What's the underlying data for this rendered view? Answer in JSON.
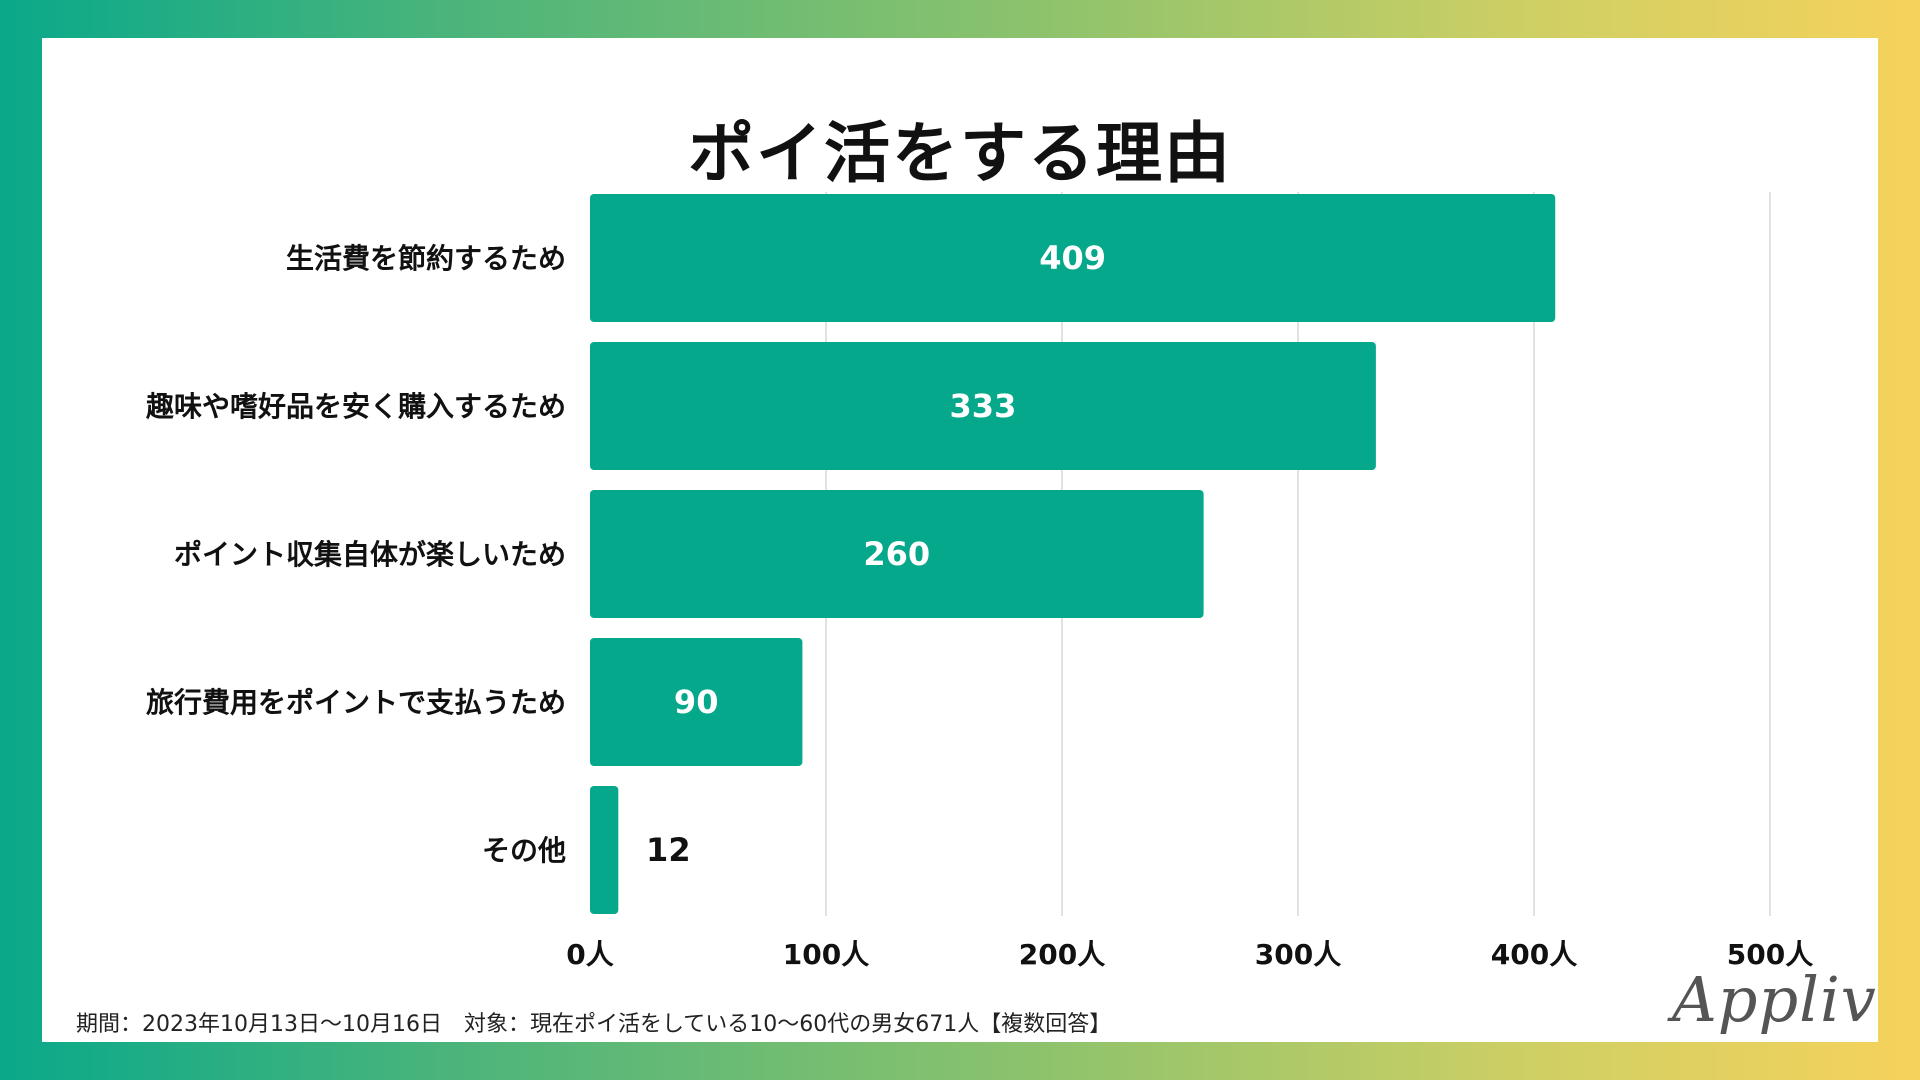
{
  "title": "ポイ活をする理由",
  "chart_data": {
    "type": "bar",
    "orientation": "horizontal",
    "categories": [
      "生活費を節約するため",
      "趣味や嗜好品を安く購入するため",
      "ポイント収集自体が楽しいため",
      "旅行費用をポイントで支払うため",
      "その他"
    ],
    "values": [
      409,
      333,
      260,
      90,
      12
    ],
    "data_labels": [
      "409",
      "333",
      "260",
      "90",
      "12"
    ],
    "xlim": [
      0,
      500
    ],
    "ticks": [
      0,
      100,
      200,
      300,
      400,
      500
    ],
    "tick_labels": [
      "0人",
      "100人",
      "200人",
      "300人",
      "400人",
      "500人"
    ],
    "grid": true,
    "bar_color": "#05a88b"
  },
  "footer": "期間：2023年10月13日〜10月16日　対象：現在ポイ活をしている10〜60代の男女671人【複数回答】",
  "logo_text": "Appliv"
}
